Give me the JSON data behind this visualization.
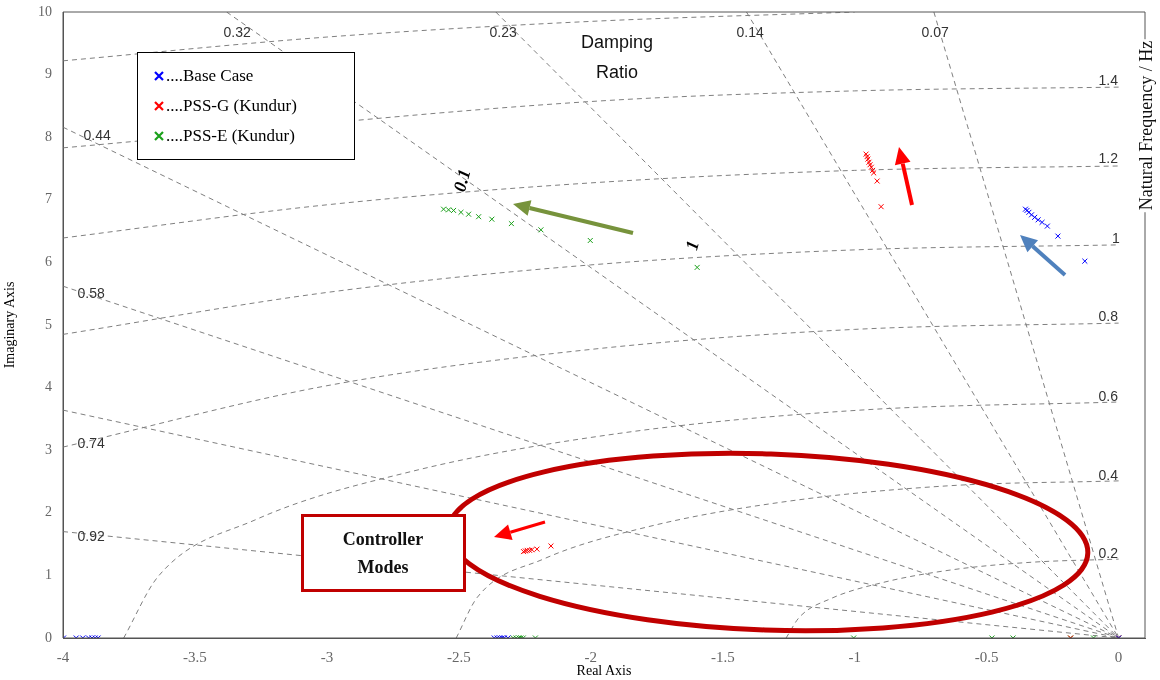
{
  "chart_data": {
    "type": "scatter",
    "xlabel": "Real Axis",
    "ylabel": "Imaginary Axis",
    "xlim": [
      -4,
      0.1
    ],
    "xticks": [
      -4,
      -3.5,
      -3,
      -2.5,
      -2,
      -1.5,
      -1,
      -0.5,
      0
    ],
    "ylim": [
      0,
      10
    ],
    "yticks": [
      0,
      1,
      2,
      3,
      4,
      5,
      6,
      7,
      8,
      9,
      10
    ],
    "grid": false,
    "legend": "top left",
    "series": [
      {
        "type": "scatter",
        "marker": "cross",
        "name": "....Base Case",
        "color": "#0000ff",
        "x": [
          -0.353,
          -0.347,
          -0.34,
          -0.33,
          -0.318,
          -0.305,
          -0.29,
          -0.27,
          -0.23,
          -0.128,
          -3.998,
          -3.95,
          -3.925,
          -3.903,
          -3.89,
          -3.878,
          -3.867,
          -2.366,
          -2.355,
          -2.345,
          -2.336,
          -2.328,
          -2.314,
          0
        ],
        "values": [
          6.85,
          6.83,
          6.8,
          6.76,
          6.72,
          6.68,
          6.64,
          6.58,
          6.42,
          6.02,
          0,
          0,
          0,
          0,
          0,
          0,
          0,
          0,
          0,
          0,
          0,
          0,
          0,
          0
        ]
      },
      {
        "type": "scatter",
        "marker": "cross",
        "name": "....PSS-G (Kundur)",
        "color": "#ff0000",
        "x": [
          -0.957,
          -0.953,
          -0.95,
          -0.946,
          -0.942,
          -0.937,
          -0.932,
          -0.928,
          -0.915,
          -0.9,
          -2.255,
          -2.248,
          -2.241,
          -2.232,
          -2.223,
          -2.204,
          -2.151,
          -0.182,
          0
        ],
        "values": [
          7.73,
          7.69,
          7.65,
          7.6,
          7.56,
          7.52,
          7.47,
          7.43,
          7.3,
          6.89,
          1.38,
          1.39,
          1.4,
          1.4,
          1.41,
          1.42,
          1.47,
          0,
          0
        ]
      },
      {
        "type": "scatter",
        "marker": "cross",
        "name": "....PSS-E (Kundur)",
        "color": "#1aa01a",
        "x": [
          -2.558,
          -2.539,
          -2.52,
          -2.492,
          -2.463,
          -2.425,
          -2.375,
          -2.301,
          -2.189,
          -2.002,
          -1.597,
          -2.294,
          -2.283,
          -2.272,
          -2.265,
          -2.256,
          -2.21,
          -1.004,
          -0.48,
          -0.4,
          -0.182,
          -0.095,
          0
        ],
        "values": [
          6.85,
          6.84,
          6.83,
          6.8,
          6.77,
          6.73,
          6.69,
          6.62,
          6.52,
          6.35,
          5.92,
          0,
          0,
          0,
          0,
          0,
          0,
          0,
          0,
          0,
          0,
          0,
          0
        ]
      },
      {
        "type": "line",
        "marker": "none",
        "line_style": "dashed",
        "color": "#808080",
        "x": [
          -1.26,
          -1.21,
          -1.09,
          -0.89,
          -0.63,
          -0.33,
          0
        ],
        "values": [
          0,
          0.33,
          0.63,
          0.89,
          1.09,
          1.21,
          1.26
        ]
      },
      {
        "type": "line",
        "marker": "none",
        "line_style": "dashed",
        "color": "#808080",
        "x": [
          -2.51,
          -2.43,
          -2.18,
          -1.78,
          -1.26,
          -0.65,
          0
        ],
        "values": [
          0,
          0.65,
          1.26,
          1.78,
          2.18,
          2.43,
          2.51
        ]
      },
      {
        "type": "line",
        "marker": "none",
        "line_style": "dashed",
        "color": "#808080",
        "x": [
          -3.77,
          -3.64,
          -3.27,
          -2.67,
          -1.89,
          -0.98,
          0
        ],
        "values": [
          0,
          0.98,
          1.89,
          2.67,
          3.27,
          3.64,
          3.77
        ]
      },
      {
        "type": "line",
        "marker": "none",
        "line_style": "dashed",
        "color": "#808080",
        "x": [
          -4,
          -3,
          -2,
          -1,
          0
        ],
        "values": [
          3.05,
          4.03,
          4.61,
          4.93,
          5.03
        ]
      },
      {
        "type": "line",
        "marker": "none",
        "line_style": "dashed",
        "color": "#808080",
        "x": [
          -4,
          -3,
          -2,
          -1,
          0
        ],
        "values": [
          4.85,
          5.52,
          5.96,
          6.2,
          6.28
        ]
      },
      {
        "type": "line",
        "marker": "none",
        "line_style": "dashed",
        "color": "#808080",
        "x": [
          -4,
          -3,
          -2,
          -1,
          0
        ],
        "values": [
          6.39,
          6.92,
          7.27,
          7.47,
          7.54
        ]
      },
      {
        "type": "line",
        "marker": "none",
        "line_style": "dashed",
        "color": "#808080",
        "x": [
          -4,
          -2,
          -1,
          0
        ],
        "values": [
          7.83,
          8.57,
          8.74,
          8.8
        ]
      },
      {
        "type": "line",
        "marker": "none",
        "line_style": "dashed",
        "color": "#808080",
        "x": [
          -4,
          -3,
          -2,
          -1
        ],
        "values": [
          9.22,
          9.6,
          9.85,
          10
        ]
      },
      {
        "type": "line",
        "marker": "none",
        "line_style": "dashed",
        "color": "#808080",
        "x": [
          -0.7,
          0
        ],
        "values": [
          10,
          0
        ]
      },
      {
        "type": "line",
        "marker": "none",
        "line_style": "dashed",
        "color": "#808080",
        "x": [
          -1.41,
          0
        ],
        "values": [
          10,
          0
        ]
      },
      {
        "type": "line",
        "marker": "none",
        "line_style": "dashed",
        "color": "#808080",
        "x": [
          -2.36,
          0
        ],
        "values": [
          10,
          0
        ]
      },
      {
        "type": "line",
        "marker": "none",
        "line_style": "dashed",
        "color": "#808080",
        "x": [
          -3.38,
          0
        ],
        "values": [
          10,
          0
        ]
      },
      {
        "type": "line",
        "marker": "none",
        "line_style": "dashed",
        "color": "#808080",
        "x": [
          -4,
          0
        ],
        "values": [
          8.16,
          0
        ]
      },
      {
        "type": "line",
        "marker": "none",
        "line_style": "dashed",
        "color": "#808080",
        "x": [
          -4,
          0
        ],
        "values": [
          5.62,
          0
        ]
      },
      {
        "type": "line",
        "marker": "none",
        "line_style": "dashed",
        "color": "#808080",
        "x": [
          -4,
          0
        ],
        "values": [
          3.64,
          0
        ]
      },
      {
        "type": "line",
        "marker": "none",
        "line_style": "dashed",
        "color": "#808080",
        "x": [
          -4,
          0
        ],
        "values": [
          1.7,
          0
        ]
      }
    ],
    "annotations": [
      "0.32",
      "0.23",
      "0.14",
      "0.07",
      "0.44",
      "0.58",
      "0.74",
      "0.92",
      "1.4",
      "1.2",
      "1",
      "0.8",
      "0.6",
      "0.4",
      "0.2",
      "0.1",
      "1",
      "Damping Ratio",
      "Natural Frequency / Hz",
      "Controller Modes"
    ]
  }
}
